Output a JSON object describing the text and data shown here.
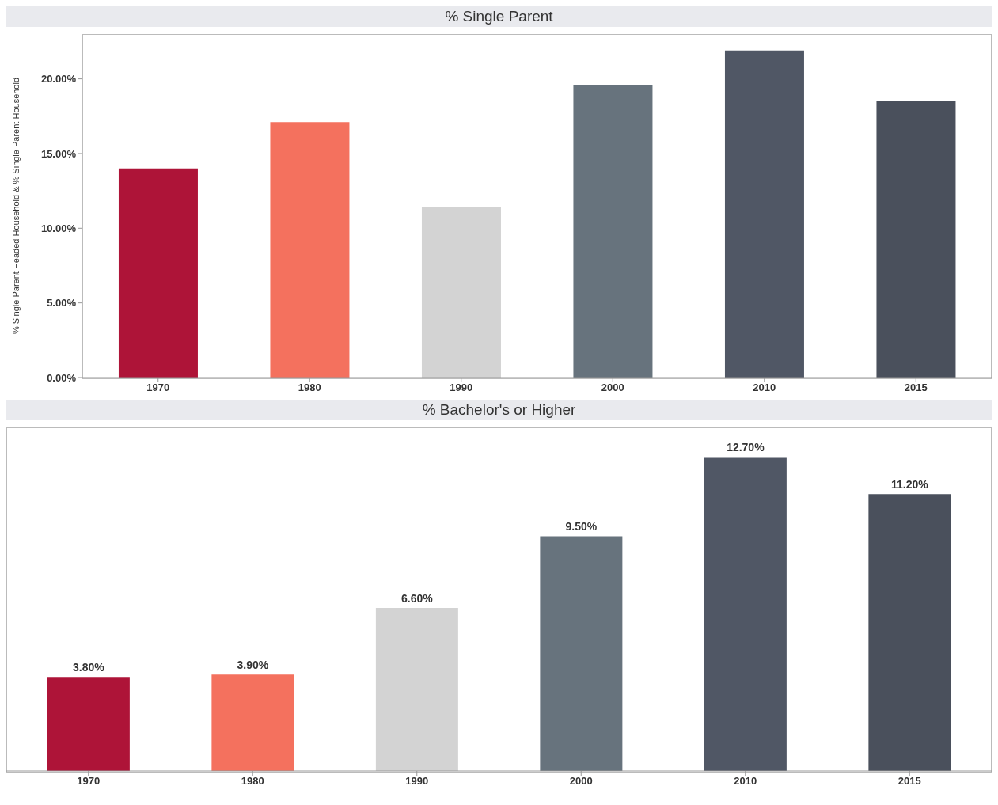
{
  "chart_data": [
    {
      "type": "bar",
      "title": "% Single Parent",
      "ylabel": "% Single Parent Headed Household & % Single Parent Household",
      "categories": [
        "1970",
        "1980",
        "1990",
        "2000",
        "2010",
        "2015"
      ],
      "values": [
        14.0,
        17.1,
        11.4,
        19.6,
        21.9,
        18.5
      ],
      "colors": [
        "#ae1438",
        "#f4715e",
        "#d3d3d3",
        "#67737d",
        "#505765",
        "#4a505c"
      ],
      "ylim": [
        0,
        23
      ],
      "yticks": [
        {
          "value": 0,
          "label": "0.00%"
        },
        {
          "value": 5,
          "label": "5.00%"
        },
        {
          "value": 10,
          "label": "10.00%"
        },
        {
          "value": 15,
          "label": "15.00%"
        },
        {
          "value": 20,
          "label": "20.00%"
        }
      ]
    },
    {
      "type": "bar",
      "title": "% Bachelor's or Higher",
      "categories": [
        "1970",
        "1980",
        "1990",
        "2000",
        "2010",
        "2015"
      ],
      "values": [
        3.8,
        3.9,
        6.6,
        9.5,
        12.7,
        11.2
      ],
      "value_labels": [
        "3.80%",
        "3.90%",
        "6.60%",
        "9.50%",
        "12.70%",
        "11.20%"
      ],
      "colors": [
        "#ae1438",
        "#f4715e",
        "#d3d3d3",
        "#67737d",
        "#505765",
        "#4a505c"
      ],
      "ylim": [
        0,
        13.9
      ],
      "tick_labels": "x"
    }
  ]
}
